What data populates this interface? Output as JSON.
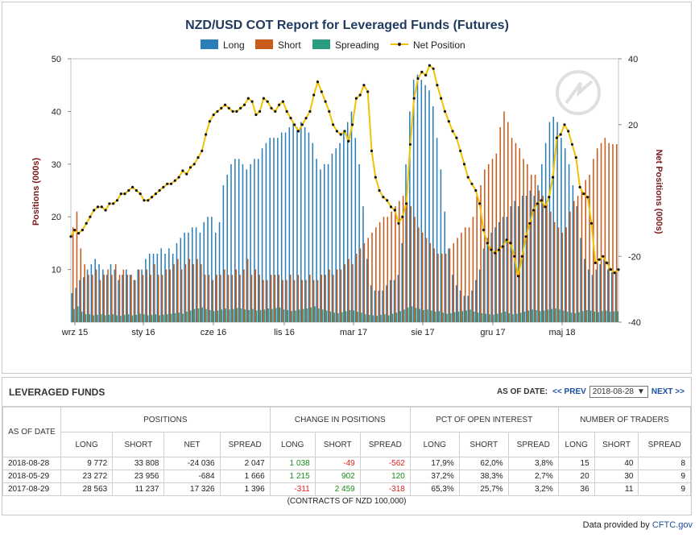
{
  "chart_data": {
    "type": "bar",
    "title": "NZD/USD COT Report for Leveraged Funds (Futures)",
    "ylabel": "Positions (000s)",
    "y2label": "Net Positions (000s)",
    "ylim": [
      0,
      50
    ],
    "y2lim": [
      -40,
      40
    ],
    "yticks": [
      10,
      20,
      30,
      40,
      50
    ],
    "y2ticks": [
      -40,
      -20,
      20,
      40
    ],
    "xticklabels": [
      "wrz 15",
      "sty 16",
      "cze 16",
      "lis 16",
      "mar 17",
      "sie 17",
      "gru 17",
      "maj 18"
    ],
    "legend": [
      "Long",
      "Short",
      "Spreading",
      "Net Position"
    ],
    "legend_position": "top-center",
    "colors": {
      "long": "#2b7fb8",
      "short": "#c85a1b",
      "spreading": "#2a9d80",
      "net": "#f2c200",
      "net_marker": "#111111"
    },
    "series": [
      {
        "name": "Long",
        "values": [
          5.5,
          6.5,
          8,
          8.5,
          10,
          11,
          12,
          11,
          10,
          9,
          11,
          10,
          8,
          9,
          10,
          9,
          8,
          10,
          10,
          12,
          13,
          13,
          13,
          14,
          13,
          14,
          13,
          15,
          16,
          17,
          17,
          18,
          18,
          17,
          19,
          20,
          20,
          17,
          19,
          26,
          28,
          30,
          31,
          31,
          30,
          29,
          30,
          31,
          31,
          33,
          34,
          35,
          35,
          35,
          36,
          36,
          37,
          38,
          37,
          38,
          37,
          36,
          34,
          31,
          29,
          30,
          30,
          32,
          33,
          34,
          36,
          38,
          40,
          35,
          30,
          22,
          12,
          7,
          6,
          6,
          6,
          7,
          8,
          8,
          9,
          15,
          30,
          40,
          46,
          47,
          46,
          45,
          44,
          41,
          35,
          29,
          21,
          14,
          9,
          7,
          6,
          5,
          5,
          6,
          8,
          10,
          14,
          16,
          17,
          18,
          19,
          20,
          20,
          22,
          23,
          22,
          24,
          24,
          25,
          24,
          26,
          30,
          34,
          38,
          39,
          38,
          35,
          33,
          30,
          26,
          22,
          16,
          12,
          10,
          9,
          10,
          11,
          12,
          10,
          9.5,
          9.8
        ]
      },
      {
        "name": "Short",
        "values": [
          18,
          21,
          14,
          11,
          9,
          9,
          10,
          8,
          9,
          10,
          9,
          11,
          9,
          10,
          9,
          9,
          8,
          10,
          9,
          10,
          9,
          11,
          9,
          9,
          10,
          10,
          11,
          12,
          10,
          11,
          12,
          11,
          12,
          11,
          9,
          9,
          8,
          9,
          9,
          10,
          9,
          9,
          10,
          9,
          10,
          12,
          9,
          10,
          9,
          8,
          8,
          9,
          9,
          9,
          8,
          8,
          9,
          8,
          9,
          8,
          8,
          9,
          8,
          8,
          9,
          9,
          10,
          9,
          10,
          10,
          11,
          12,
          11,
          13,
          14,
          15,
          16,
          17,
          18,
          19,
          20,
          20,
          21,
          22,
          23,
          24,
          23,
          22,
          20,
          18,
          17,
          16,
          15,
          14,
          13,
          13,
          13,
          14,
          15,
          16,
          17,
          18,
          18,
          20,
          24,
          26,
          29,
          30,
          31,
          32,
          37,
          40,
          38,
          35,
          34,
          33,
          31,
          30,
          28,
          28,
          25,
          24,
          23,
          21,
          19,
          18,
          17,
          18,
          21,
          23,
          24,
          25,
          27,
          28,
          31,
          33,
          34,
          35,
          34,
          33.8,
          33.8
        ]
      },
      {
        "name": "Spreading",
        "values": [
          2.5,
          3,
          2,
          1.5,
          1.5,
          1.3,
          1.4,
          1.5,
          1.3,
          1.4,
          1.5,
          1.3,
          1.2,
          1.4,
          1.5,
          1.3,
          1.4,
          1.6,
          1.5,
          1.3,
          1.4,
          1.5,
          1.3,
          1.4,
          1.5,
          1.6,
          1.7,
          1.8,
          1.6,
          2,
          2.2,
          2.5,
          2.6,
          2.8,
          2.5,
          2.3,
          2.1,
          2.2,
          2.4,
          2.6,
          2.4,
          2.5,
          2.7,
          2.6,
          2.4,
          2.3,
          2.5,
          2.2,
          2.3,
          2.4,
          2.6,
          2.5,
          2.7,
          2.8,
          2.4,
          2.3,
          2.1,
          2.2,
          2.4,
          2.5,
          2.6,
          2.8,
          3,
          2.6,
          2.4,
          2.2,
          2,
          1.8,
          1.7,
          1.9,
          2.1,
          2.3,
          2.2,
          2,
          1.8,
          1.5,
          1.4,
          1.3,
          1.2,
          1.4,
          1.5,
          1.3,
          1.6,
          1.8,
          2.1,
          2.4,
          2.8,
          3,
          2.7,
          2.5,
          2.3,
          2.4,
          2.2,
          2,
          2.1,
          1.8,
          1.6,
          1.7,
          1.9,
          2,
          2.1,
          2.2,
          2.4,
          2,
          1.8,
          1.7,
          1.6,
          1.5,
          1.4,
          1.6,
          1.8,
          2,
          1.7,
          1.5,
          1.6,
          1.8,
          2,
          2.2,
          2.4,
          2.3,
          2.1,
          2.2,
          2.4,
          2.5,
          2.6,
          2.4,
          2.2,
          2,
          1.8,
          1.7,
          1.9,
          2.1,
          2.3,
          2.2,
          2,
          1.9,
          2.1,
          2.2,
          2,
          2.05,
          2.05
        ]
      },
      {
        "name": "Net Position",
        "values": [
          -14,
          -12,
          -13,
          -12,
          -10,
          -8,
          -6,
          -5,
          -5,
          -6,
          -4,
          -4,
          -3,
          -1,
          -1,
          0,
          1,
          0,
          -1,
          -3,
          -3,
          -2,
          -1,
          0,
          1,
          2,
          2,
          3,
          4,
          6,
          5,
          7,
          8,
          10,
          12,
          17,
          21,
          23,
          24,
          25,
          26,
          25,
          24,
          24,
          25,
          26,
          28,
          27,
          23,
          24,
          28,
          27,
          25,
          24,
          26,
          27,
          24,
          22,
          20,
          18,
          20,
          22,
          24,
          29,
          33,
          30,
          27,
          24,
          20,
          18,
          17,
          18,
          15,
          20,
          28,
          29,
          32,
          30,
          12,
          4,
          0,
          -2,
          -3,
          -5,
          -6,
          -10,
          -8,
          -4,
          14,
          28,
          34,
          36,
          35,
          38,
          37,
          32,
          28,
          24,
          21,
          18,
          16,
          12,
          8,
          4,
          2,
          0,
          -4,
          -12,
          -16,
          -18,
          -19,
          -18,
          -17,
          -15,
          -16,
          -20,
          -26,
          -20,
          -14,
          -10,
          -6,
          -4,
          -3,
          -5,
          -2,
          4,
          16,
          17,
          20,
          18,
          14,
          10,
          1,
          -1,
          -2,
          -10,
          -22,
          -21,
          -20,
          -22,
          -24,
          -25,
          -24.036
        ]
      }
    ]
  },
  "table": {
    "title": "LEVERAGED FUNDS",
    "as_of_label": "AS OF DATE:",
    "prev_label": "<< PREV",
    "next_label": "NEXT >>",
    "selected_date": "2018-08-28",
    "groups": {
      "positions": "POSITIONS",
      "change": "CHANGE IN POSITIONS",
      "pct": "PCT OF OPEN INTEREST",
      "traders": "NUMBER OF TRADERS"
    },
    "as_of_col": "AS OF DATE",
    "cols": {
      "long": "LONG",
      "short": "SHORT",
      "net": "NET",
      "spread": "SPREAD"
    },
    "rows": [
      {
        "date": "2018-08-28",
        "long": "9 772",
        "short": "33 808",
        "net": "-24 036",
        "spread": "2 047",
        "c_long": "1 038",
        "c_short": "-49",
        "c_spread": "-562",
        "p_long": "17,9%",
        "p_short": "62,0%",
        "p_spread": "3,8%",
        "t_long": "15",
        "t_short": "40",
        "t_spread": "8"
      },
      {
        "date": "2018-05-29",
        "long": "23 272",
        "short": "23 956",
        "net": "-684",
        "spread": "1 666",
        "c_long": "1 215",
        "c_short": "902",
        "c_spread": "120",
        "p_long": "37,2%",
        "p_short": "38,3%",
        "p_spread": "2,7%",
        "t_long": "20",
        "t_short": "30",
        "t_spread": "9"
      },
      {
        "date": "2017-08-29",
        "long": "28 563",
        "short": "11 237",
        "net": "17 326",
        "spread": "1 396",
        "c_long": "-311",
        "c_short": "2 459",
        "c_spread": "-318",
        "p_long": "65,3%",
        "p_short": "25,7%",
        "p_spread": "3,2%",
        "t_long": "36",
        "t_short": "11",
        "t_spread": "9"
      }
    ],
    "footnote": "(CONTRACTS OF NZD 100,000)"
  },
  "credit": {
    "text": "Data provided by",
    "link": "CFTC.gov"
  }
}
